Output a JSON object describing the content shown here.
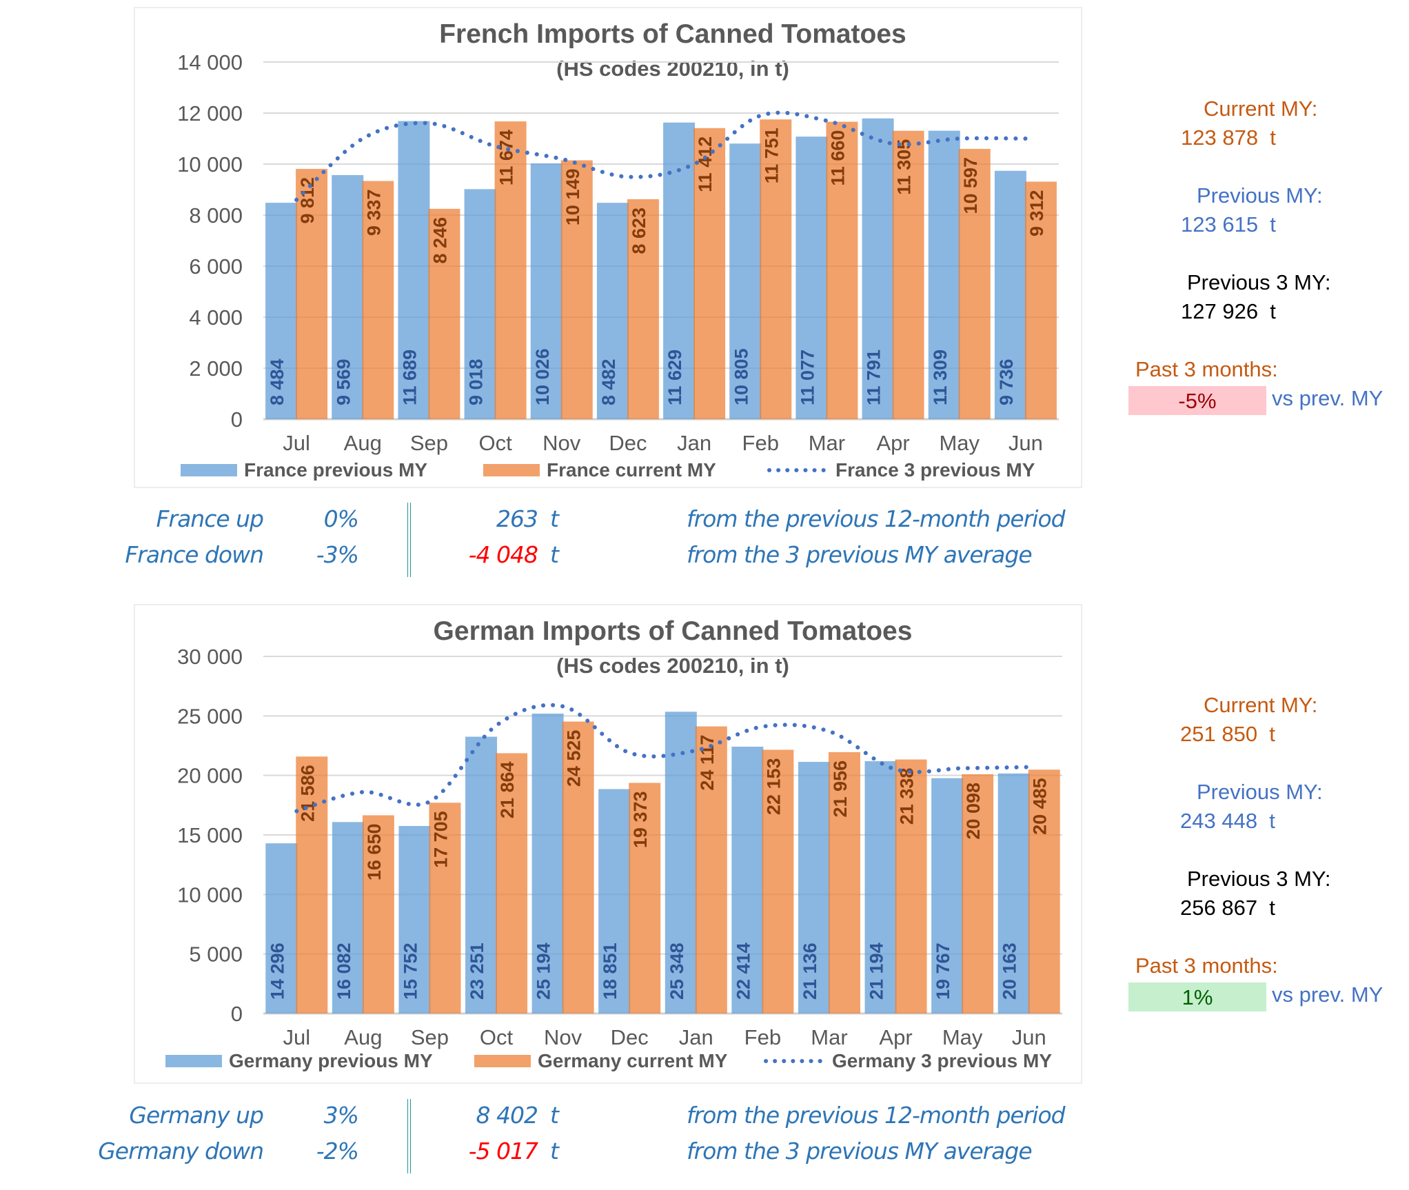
{
  "charts": {
    "france": {
      "title": "French Imports of Canned Tomatoes",
      "subtitle": "(HS codes 200210, in t)",
      "legend": [
        "France previous MY",
        "France current MY",
        "France 3 previous MY"
      ]
    },
    "germany": {
      "title": "German Imports of Canned Tomatoes",
      "subtitle": "(HS codes 200210, in t)",
      "legend": [
        "Germany previous MY",
        "Germany current MY",
        "Germany 3 previous MY"
      ]
    }
  },
  "chart_data": [
    {
      "type": "bar",
      "title": "French Imports of Canned Tomatoes",
      "subtitle": "(HS codes 200210, in t)",
      "xlabel": "",
      "ylabel": "",
      "ylim": [
        0,
        14000
      ],
      "yticks": [
        0,
        2000,
        4000,
        6000,
        8000,
        10000,
        12000,
        14000
      ],
      "ytick_labels": [
        "0",
        "2 000",
        "4 000",
        "6 000",
        "8 000",
        "10 000",
        "12 000",
        "14 000"
      ],
      "grid": true,
      "legend_position": "bottom",
      "categories": [
        "Jul",
        "Aug",
        "Sep",
        "Oct",
        "Nov",
        "Dec",
        "Jan",
        "Feb",
        "Mar",
        "Apr",
        "May",
        "Jun"
      ],
      "series": [
        {
          "name": "France previous MY",
          "kind": "bar",
          "color": "#5b9bd5",
          "values": [
            8484,
            9569,
            11689,
            9018,
            10026,
            8482,
            11629,
            10805,
            11077,
            11791,
            11309,
            9736
          ],
          "labels": [
            "8 484",
            "9 569",
            "11 689",
            "9 018",
            "10 026",
            "8 482",
            "11 629",
            "10 805",
            "11 077",
            "11 791",
            "11 309",
            "9 736"
          ]
        },
        {
          "name": "France current MY",
          "kind": "bar",
          "color": "#ed7d31",
          "values": [
            9812,
            9337,
            8246,
            11674,
            10149,
            8623,
            11412,
            11751,
            11660,
            11305,
            10597,
            9312
          ],
          "labels": [
            "9 812",
            "9 337",
            "8 246",
            "11 674",
            "10 149",
            "8 623",
            "11 412",
            "11 751",
            "11 660",
            "11 305",
            "10 597",
            "9 312"
          ]
        },
        {
          "name": "France 3 previous MY",
          "kind": "line-dotted",
          "color": "#4472c4",
          "values": [
            8600,
            11000,
            11600,
            10700,
            10200,
            9500,
            10000,
            11900,
            11700,
            10800,
            11000,
            11000
          ]
        }
      ]
    },
    {
      "type": "bar",
      "title": "German Imports of Canned Tomatoes",
      "subtitle": "(HS codes 200210, in t)",
      "xlabel": "",
      "ylabel": "",
      "ylim": [
        0,
        30000
      ],
      "yticks": [
        0,
        5000,
        10000,
        15000,
        20000,
        25000,
        30000
      ],
      "ytick_labels": [
        "0",
        "5 000",
        "10 000",
        "15 000",
        "20 000",
        "25 000",
        "30 000"
      ],
      "grid": true,
      "legend_position": "bottom",
      "categories": [
        "Jul",
        "Aug",
        "Sep",
        "Oct",
        "Nov",
        "Dec",
        "Jan",
        "Feb",
        "Mar",
        "Apr",
        "May",
        "Jun"
      ],
      "series": [
        {
          "name": "Germany previous MY",
          "kind": "bar",
          "color": "#5b9bd5",
          "values": [
            14296,
            16082,
            15752,
            23251,
            25194,
            18851,
            25348,
            22414,
            21136,
            21194,
            19767,
            20163
          ],
          "labels": [
            "14 296",
            "16 082",
            "15 752",
            "23 251",
            "25 194",
            "18 851",
            "25 348",
            "22 414",
            "21 136",
            "21 194",
            "19 767",
            "20 163"
          ]
        },
        {
          "name": "Germany current MY",
          "kind": "bar",
          "color": "#ed7d31",
          "values": [
            21586,
            16650,
            17705,
            21864,
            24525,
            19373,
            24117,
            22153,
            21956,
            21338,
            20098,
            20485
          ],
          "labels": [
            "21 586",
            "16 650",
            "17 705",
            "21 864",
            "24 525",
            "19 373",
            "24 117",
            "22 153",
            "21 956",
            "21 338",
            "20 098",
            "20 485"
          ]
        },
        {
          "name": "Germany 3 previous MY",
          "kind": "line-dotted",
          "color": "#4472c4",
          "values": [
            17000,
            18600,
            17800,
            24200,
            25800,
            21900,
            22100,
            24100,
            23700,
            20500,
            20600,
            20700
          ]
        }
      ]
    }
  ],
  "summaries": {
    "france": {
      "up": {
        "name": "France up",
        "pct": "0%",
        "value": "263",
        "unit": "t",
        "desc": "from the previous 12-month period"
      },
      "down": {
        "name": "France down",
        "pct": "-3%",
        "value": "-4 048",
        "unit": "t",
        "desc": "from the 3 previous MY average"
      }
    },
    "germany": {
      "up": {
        "name": "Germany up",
        "pct": "3%",
        "value": "8 402",
        "unit": "t",
        "desc": "from the previous 12-month period"
      },
      "down": {
        "name": "Germany down",
        "pct": "-2%",
        "value": "-5 017",
        "unit": "t",
        "desc": "from the 3 previous MY average"
      }
    }
  },
  "side_panels": {
    "france": {
      "current_label": "Current MY:",
      "current_value": "123 878",
      "current_unit": "t",
      "previous_label": "Previous MY:",
      "previous_value": "123 615",
      "previous_unit": "t",
      "three_label": "Previous 3 MY:",
      "three_value": "127 926",
      "three_unit": "t",
      "past_label": "Past 3 months:",
      "past_pct": "-5%",
      "past_suffix": "vs prev. MY"
    },
    "germany": {
      "current_label": "Current MY:",
      "current_value": "251 850",
      "current_unit": "t",
      "previous_label": "Previous MY:",
      "previous_value": "243 448",
      "previous_unit": "t",
      "three_label": "Previous 3 MY:",
      "three_value": "256 867",
      "three_unit": "t",
      "past_label": "Past 3 months:",
      "past_pct": "1%",
      "past_suffix": "vs prev. MY"
    }
  },
  "colors": {
    "previous_bar": "#5b9bd5",
    "current_bar": "#ed7d31",
    "three_year_line": "#4472c4",
    "negative_box_bg": "#ffc7ce",
    "negative_box_text": "#9c0006",
    "positive_box_bg": "#c6efce",
    "positive_box_text": "#006100"
  }
}
